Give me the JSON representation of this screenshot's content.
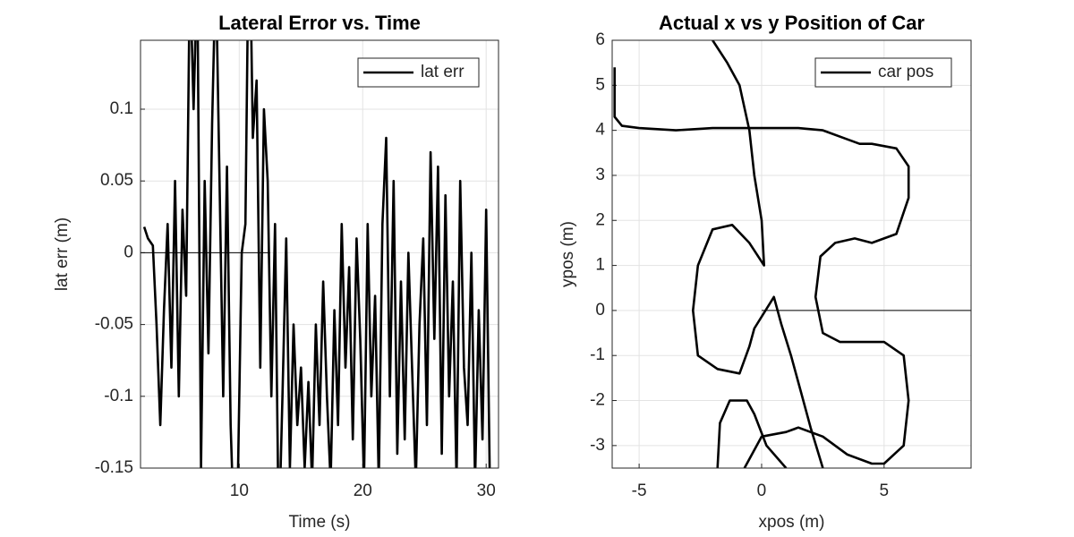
{
  "chart_data": [
    {
      "type": "line",
      "title": "Lateral Error vs. Time",
      "xlabel": "Time (s)",
      "ylabel": "lat err (m)",
      "xlim": [
        2,
        31
      ],
      "xticks": [
        10,
        20,
        30
      ],
      "ylim": [
        -0.15,
        0.148
      ],
      "yticks": [
        -0.15,
        -0.1,
        -0.05,
        0,
        0.05,
        0.1
      ],
      "grid": true,
      "legend": "upper right",
      "zero_line": {
        "x": [
          2,
          12.5
        ],
        "y": 0
      },
      "series": [
        {
          "name": "lat err",
          "color": "#000000",
          "x": [
            2.3,
            2.6,
            3.0,
            3.3,
            3.6,
            3.9,
            4.2,
            4.5,
            4.8,
            5.1,
            5.4,
            5.7,
            6.0,
            6.3,
            6.6,
            6.9,
            7.2,
            7.5,
            7.8,
            8.1,
            8.4,
            8.7,
            9.0,
            9.3,
            9.6,
            9.9,
            10.2,
            10.5,
            10.8,
            11.1,
            11.4,
            11.7,
            12.0,
            12.3,
            12.6,
            12.9,
            13.2,
            13.5,
            13.8,
            14.1,
            14.4,
            14.7,
            15.0,
            15.3,
            15.6,
            15.9,
            16.2,
            16.5,
            16.8,
            17.1,
            17.4,
            17.7,
            18.0,
            18.3,
            18.6,
            18.9,
            19.2,
            19.5,
            19.8,
            20.1,
            20.4,
            20.7,
            21.0,
            21.3,
            21.6,
            21.9,
            22.2,
            22.5,
            22.8,
            23.1,
            23.4,
            23.7,
            24.0,
            24.3,
            24.6,
            24.9,
            25.2,
            25.5,
            25.8,
            26.1,
            26.4,
            26.7,
            27.0,
            27.3,
            27.6,
            27.9,
            28.2,
            28.5,
            28.8,
            29.1,
            29.4,
            29.7,
            30.0,
            30.3
          ],
          "values": [
            0.018,
            0.01,
            0.005,
            -0.05,
            -0.12,
            -0.04,
            0.02,
            -0.08,
            0.05,
            -0.1,
            0.03,
            -0.03,
            0.2,
            0.1,
            0.2,
            -0.15,
            0.05,
            -0.07,
            0.09,
            0.2,
            0.05,
            -0.1,
            0.06,
            -0.12,
            -0.2,
            -0.15,
            0.0,
            0.02,
            0.25,
            0.08,
            0.12,
            -0.08,
            0.1,
            0.05,
            -0.1,
            0.02,
            -0.2,
            -0.1,
            0.01,
            -0.15,
            -0.05,
            -0.12,
            -0.08,
            -0.15,
            -0.09,
            -0.16,
            -0.05,
            -0.12,
            -0.02,
            -0.1,
            -0.16,
            -0.04,
            -0.12,
            0.02,
            -0.08,
            -0.01,
            -0.13,
            0.01,
            -0.06,
            -0.16,
            0.02,
            -0.1,
            -0.03,
            -0.16,
            0.02,
            0.08,
            -0.1,
            0.05,
            -0.14,
            -0.02,
            -0.13,
            0.0,
            -0.08,
            -0.16,
            -0.05,
            0.01,
            -0.12,
            0.07,
            -0.06,
            0.06,
            -0.14,
            0.04,
            -0.1,
            -0.02,
            -0.16,
            0.05,
            -0.08,
            -0.12,
            0.0,
            -0.16,
            -0.04,
            -0.13,
            0.03,
            -0.16
          ]
        }
      ]
    },
    {
      "type": "line",
      "title": "Actual x vs y Position of Car",
      "xlabel": "xpos (m)",
      "ylabel": "ypos (m)",
      "xlim": [
        -6.1,
        8.55
      ],
      "xticks": [
        -5,
        0,
        5
      ],
      "ylim": [
        -3.5,
        6
      ],
      "yticks": [
        -3,
        -2,
        -1,
        0,
        1,
        2,
        3,
        4,
        5,
        6
      ],
      "grid": true,
      "legend": "upper right",
      "zero_line": {
        "x": [
          0,
          8.55
        ],
        "y": 0
      },
      "series": [
        {
          "name": "car pos",
          "color": "#000000",
          "x": [
            -2,
            -1.4,
            -0.9,
            -0.7,
            -0.5,
            -0.3,
            0,
            0.1,
            -0.5,
            -1.2,
            -2,
            -2.6,
            -2.8,
            -2.6,
            -1.8,
            -0.9,
            -0.5,
            -0.3,
            0.5,
            0.8,
            1.2,
            1.6,
            2,
            2.5,
            null,
            -1.8,
            -1.7,
            -1.3,
            -0.6,
            -0.3,
            0.2,
            1.0,
            null,
            -0.7,
            0,
            1,
            1.5,
            2.5,
            3.5,
            4.5,
            5,
            5.8,
            6,
            5.8,
            5,
            4,
            3.2,
            2.5,
            2.2,
            2.4,
            3,
            3.8,
            4.5,
            5.5,
            6,
            6,
            5.5,
            4.5,
            4,
            3.5,
            2.5,
            1.5,
            0.5,
            -0.5,
            -2,
            -3.5,
            -5,
            -5.7,
            -6,
            -6
          ],
          "values": [
            6,
            5.5,
            5,
            4.5,
            4,
            3,
            2,
            1.0,
            1.5,
            1.9,
            1.8,
            1.0,
            0,
            -1,
            -1.3,
            -1.4,
            -0.8,
            -0.4,
            0.3,
            -0.3,
            -1,
            -1.8,
            -2.6,
            -3.5,
            null,
            -3.5,
            -2.5,
            -2.0,
            -2.0,
            -2.3,
            -3.0,
            -3.5,
            null,
            -3.5,
            -2.8,
            -2.7,
            -2.6,
            -2.8,
            -3.2,
            -3.4,
            -3.4,
            -3,
            -2,
            -1,
            -0.7,
            -0.7,
            -0.7,
            -0.5,
            0.3,
            1.2,
            1.5,
            1.6,
            1.5,
            1.7,
            2.5,
            3.2,
            3.6,
            3.7,
            3.7,
            3.8,
            4,
            4.05,
            4.05,
            4.05,
            4.05,
            4.0,
            4.05,
            4.1,
            4.3,
            5.4
          ]
        }
      ]
    }
  ]
}
